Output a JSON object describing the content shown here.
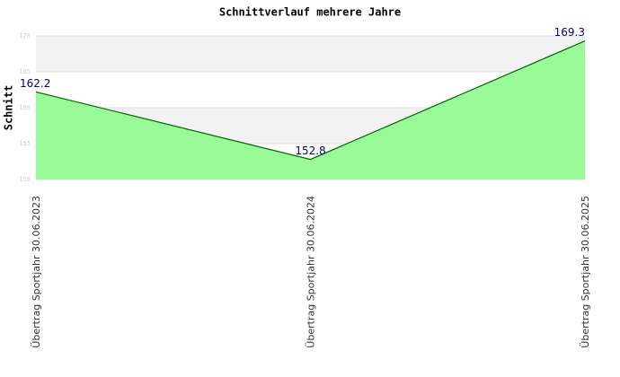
{
  "chart_data": {
    "type": "area",
    "title": "Schnittverlauf mehrere Jahre",
    "y_label": "Schnitt",
    "categories": [
      "Übertrag Sportjahr 30.06.2023",
      "Übertrag Sportjahr 30.06.2024",
      "Übertrag Sportjahr 30.06.2025"
    ],
    "values": [
      162.2,
      152.8,
      169.3
    ],
    "color": "#006400",
    "fill": "#98fb98",
    "ylim": [
      150,
      170
    ],
    "yticks": [
      150,
      155,
      160,
      165,
      170
    ],
    "grid": true
  }
}
